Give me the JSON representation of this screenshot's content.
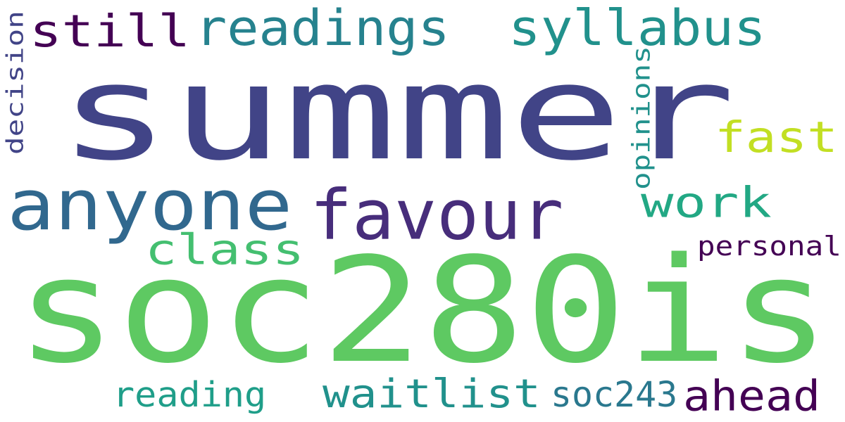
{
  "words": [
    {
      "id": "summer",
      "text": "summer",
      "color": "#414487"
    },
    {
      "id": "soc280is",
      "text": "soc280is",
      "color": "#5ec962"
    },
    {
      "id": "anyone",
      "text": "anyone",
      "color": "#31688e"
    },
    {
      "id": "favour",
      "text": "favour",
      "color": "#472d7b"
    },
    {
      "id": "readings",
      "text": "readings",
      "color": "#26828e"
    },
    {
      "id": "syllabus",
      "text": "syllabus",
      "color": "#21918c"
    },
    {
      "id": "still",
      "text": "still",
      "color": "#440154"
    },
    {
      "id": "fast",
      "text": "fast",
      "color": "#c2df23"
    },
    {
      "id": "work",
      "text": "work",
      "color": "#22a884"
    },
    {
      "id": "class",
      "text": "class",
      "color": "#44bf70"
    },
    {
      "id": "waitlist",
      "text": "waitlist",
      "color": "#21918c"
    },
    {
      "id": "ahead",
      "text": "ahead",
      "color": "#440154"
    },
    {
      "id": "soc243",
      "text": "soc243",
      "color": "#2a788e"
    },
    {
      "id": "reading",
      "text": "reading",
      "color": "#1f9e89"
    },
    {
      "id": "personal",
      "text": "personal",
      "color": "#440154"
    },
    {
      "id": "decision",
      "text": "decision",
      "color": "#414487"
    },
    {
      "id": "opinions",
      "text": "opinions",
      "color": "#21918c"
    }
  ]
}
